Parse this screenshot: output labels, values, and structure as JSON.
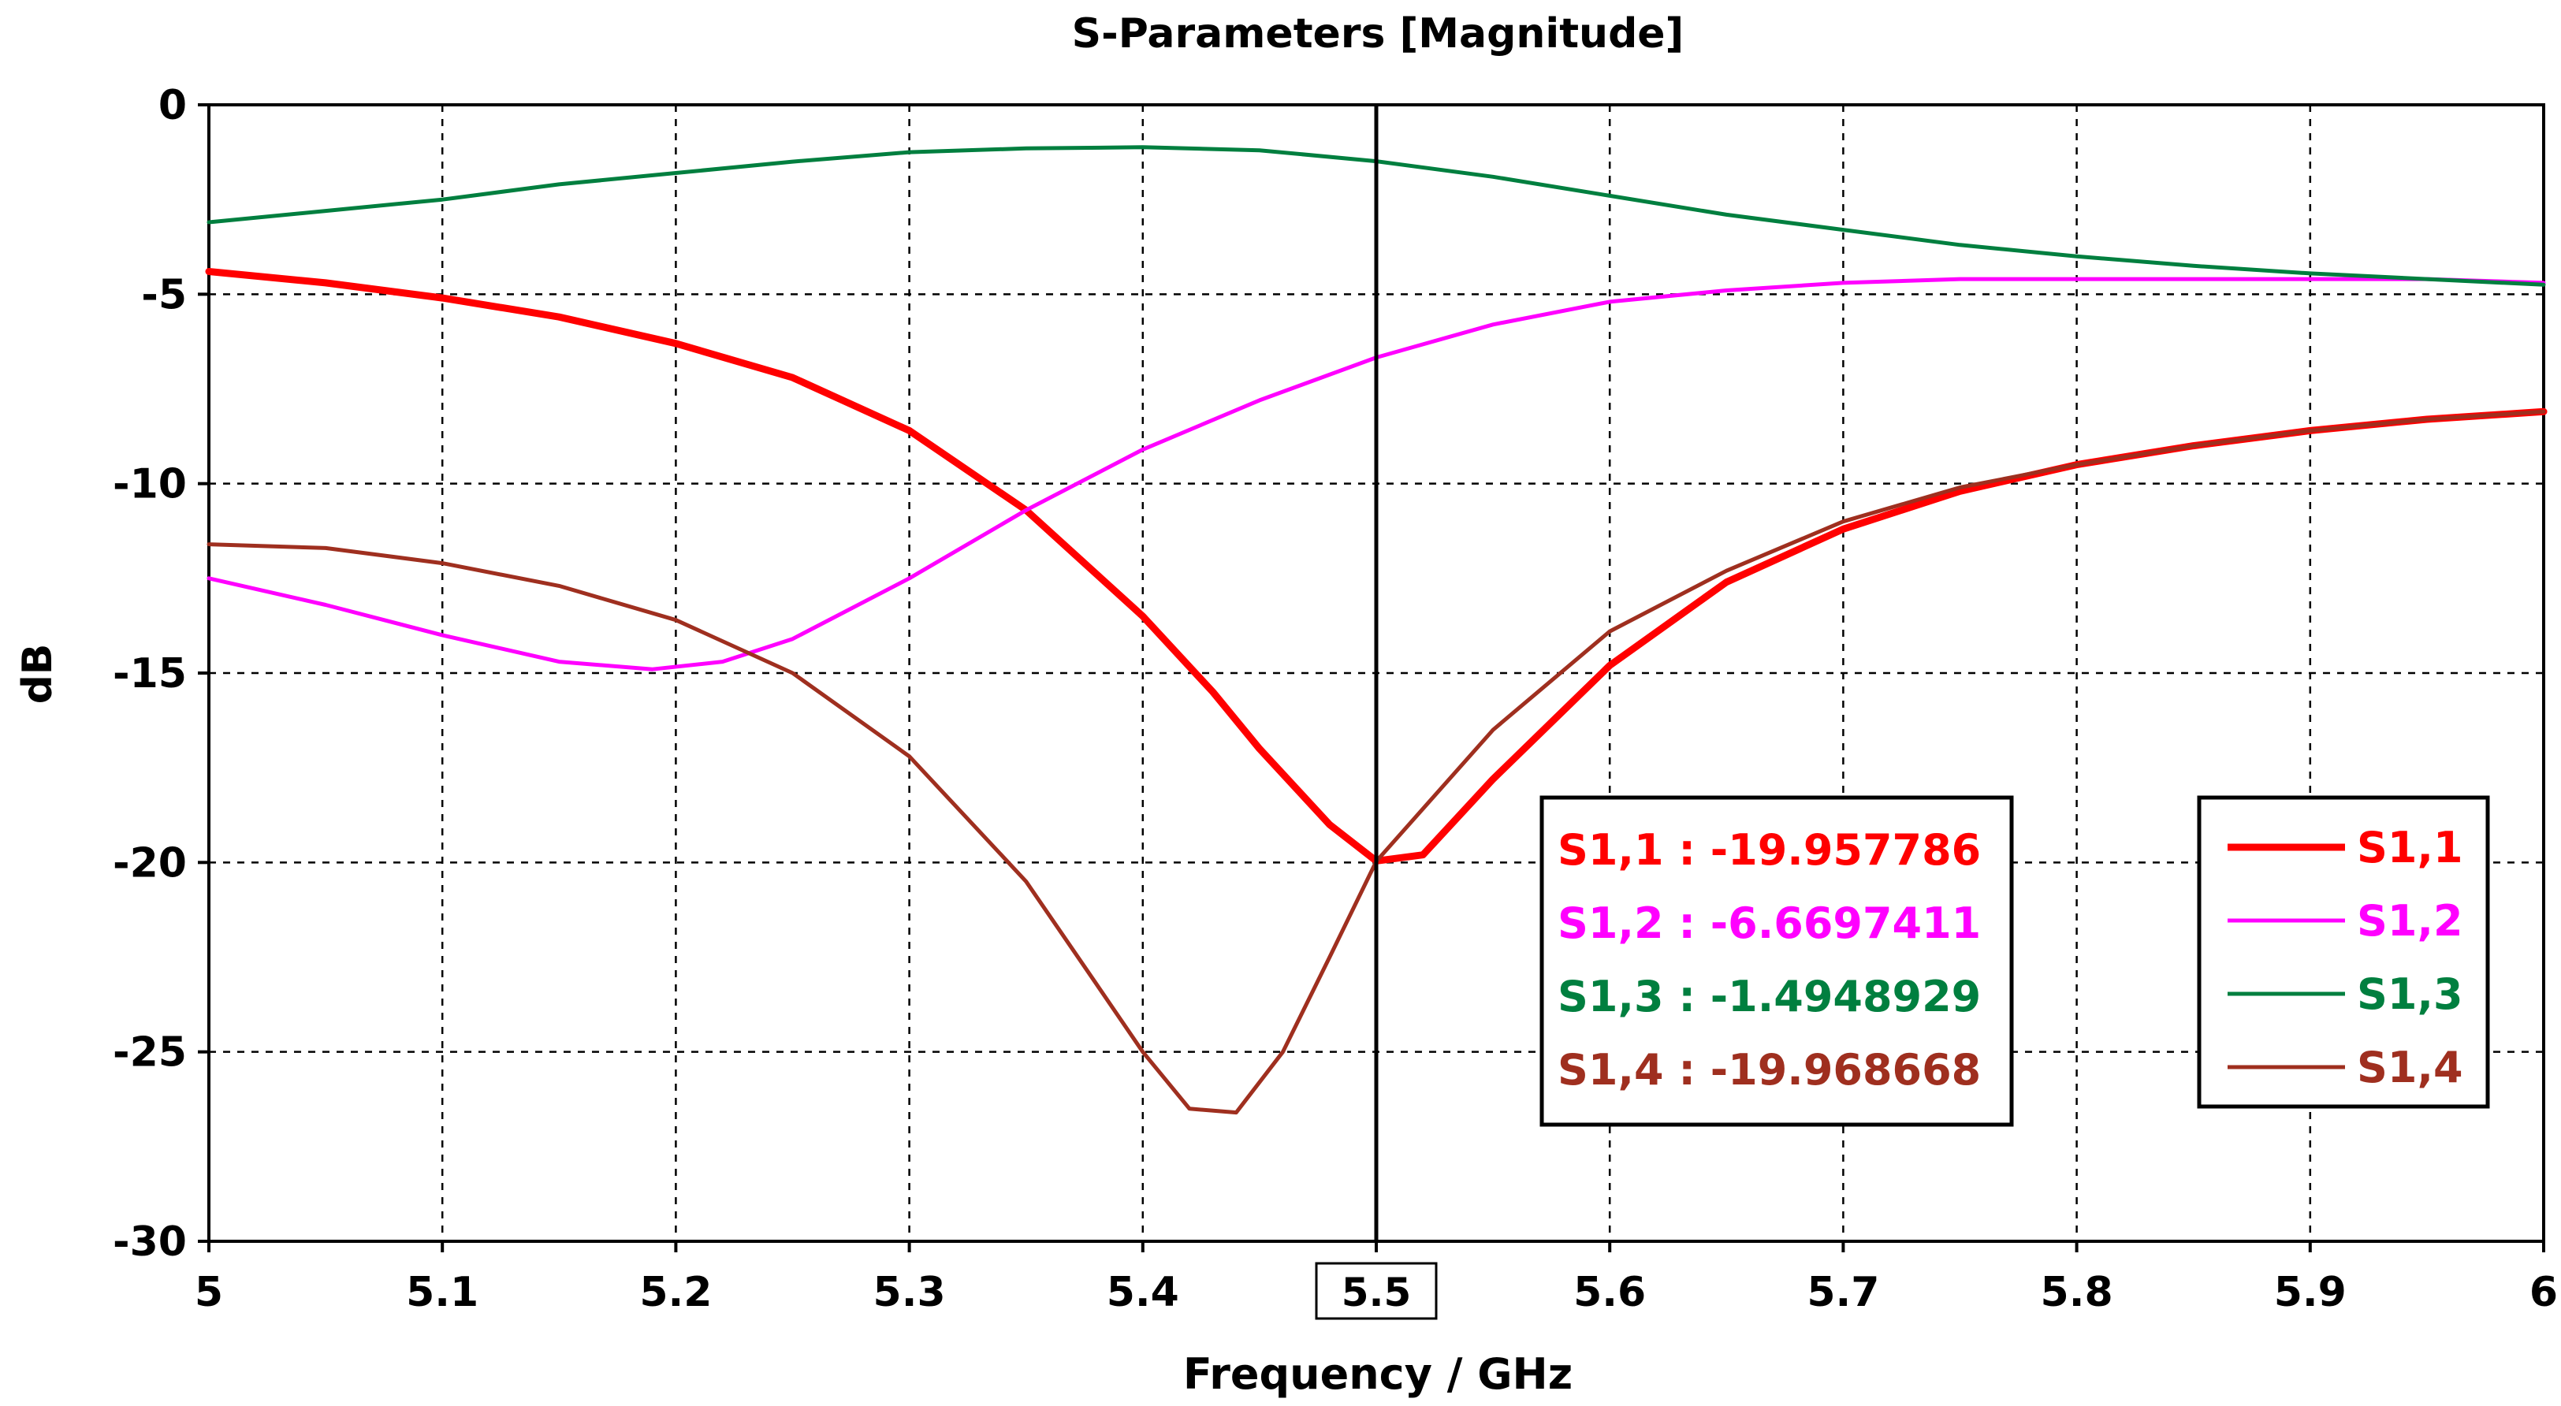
{
  "chart_data": {
    "type": "line",
    "title": "S-Parameters [Magnitude]",
    "xlabel": "Frequency / GHz",
    "ylabel": "dB",
    "xlim": [
      5,
      6
    ],
    "ylim": [
      -30,
      0
    ],
    "grid": true,
    "x_ticks": [
      "5",
      "5.1",
      "5.2",
      "5.3",
      "5.4",
      "5.5",
      "5.6",
      "5.7",
      "5.8",
      "5.9",
      "6"
    ],
    "y_ticks": [
      "0",
      "-5",
      "-10",
      "-15",
      "-20",
      "-25",
      "-30"
    ],
    "legend_position": "bottom-right",
    "marker": {
      "x": 5.5,
      "x_label": "5.5",
      "readouts": [
        {
          "text": "S1,1 : -19.957786",
          "color": "#ff0000"
        },
        {
          "text": "S1,2 : -6.6697411",
          "color": "#ff00ff"
        },
        {
          "text": "S1,3 : -1.4948929",
          "color": "#007f3f"
        },
        {
          "text": "S1,4 : -19.968668",
          "color": "#9f2f1f"
        }
      ]
    },
    "series": [
      {
        "name": "S1,1",
        "color": "#ff0000",
        "x": [
          5.0,
          5.05,
          5.1,
          5.15,
          5.2,
          5.25,
          5.3,
          5.35,
          5.4,
          5.43,
          5.45,
          5.48,
          5.5,
          5.52,
          5.55,
          5.6,
          5.65,
          5.7,
          5.75,
          5.8,
          5.85,
          5.9,
          5.95,
          6.0
        ],
        "y": [
          -4.4,
          -4.7,
          -5.1,
          -5.6,
          -6.3,
          -7.2,
          -8.6,
          -10.7,
          -13.5,
          -15.5,
          -17.0,
          -19.0,
          -19.96,
          -19.8,
          -17.8,
          -14.8,
          -12.6,
          -11.2,
          -10.2,
          -9.5,
          -9.0,
          -8.6,
          -8.3,
          -8.1
        ]
      },
      {
        "name": "S1,2",
        "color": "#ff00ff",
        "x": [
          5.0,
          5.05,
          5.1,
          5.15,
          5.19,
          5.22,
          5.25,
          5.3,
          5.35,
          5.4,
          5.45,
          5.5,
          5.55,
          5.6,
          5.65,
          5.7,
          5.75,
          5.8,
          5.85,
          5.9,
          5.95,
          6.0
        ],
        "y": [
          -12.5,
          -13.2,
          -14.0,
          -14.7,
          -14.9,
          -14.7,
          -14.1,
          -12.5,
          -10.7,
          -9.1,
          -7.8,
          -6.67,
          -5.8,
          -5.2,
          -4.9,
          -4.7,
          -4.6,
          -4.6,
          -4.6,
          -4.6,
          -4.6,
          -4.7
        ]
      },
      {
        "name": "S1,3",
        "color": "#007f3f",
        "x": [
          5.0,
          5.05,
          5.1,
          5.15,
          5.2,
          5.25,
          5.3,
          5.35,
          5.4,
          5.45,
          5.5,
          5.55,
          5.6,
          5.65,
          5.7,
          5.75,
          5.8,
          5.85,
          5.9,
          5.95,
          6.0
        ],
        "y": [
          -3.1,
          -2.8,
          -2.5,
          -2.1,
          -1.8,
          -1.5,
          -1.25,
          -1.15,
          -1.12,
          -1.2,
          -1.49,
          -1.9,
          -2.4,
          -2.9,
          -3.3,
          -3.7,
          -4.0,
          -4.25,
          -4.45,
          -4.6,
          -4.75
        ]
      },
      {
        "name": "S1,4",
        "color": "#9f2f1f",
        "x": [
          5.0,
          5.05,
          5.1,
          5.15,
          5.2,
          5.25,
          5.3,
          5.35,
          5.38,
          5.4,
          5.42,
          5.44,
          5.46,
          5.48,
          5.5,
          5.55,
          5.6,
          5.65,
          5.7,
          5.75,
          5.8,
          5.85,
          5.9,
          5.95,
          6.0
        ],
        "y": [
          -11.6,
          -11.7,
          -12.1,
          -12.7,
          -13.6,
          -15.0,
          -17.2,
          -20.5,
          -23.2,
          -25.0,
          -26.5,
          -26.6,
          -25.0,
          -22.5,
          -19.97,
          -16.5,
          -13.9,
          -12.3,
          -11.0,
          -10.1,
          -9.5,
          -9.0,
          -8.6,
          -8.3,
          -8.1
        ]
      }
    ]
  }
}
